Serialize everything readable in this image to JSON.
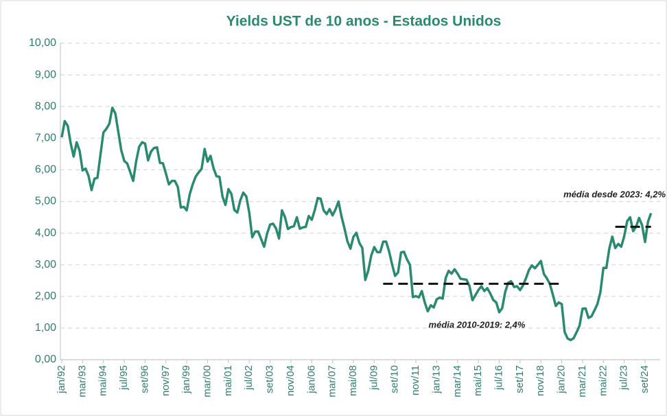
{
  "chart_data": {
    "type": "line",
    "title": "Yields UST de 10 anos - Estados Unidos",
    "categories": [
      "jan/92",
      null,
      null,
      null,
      null,
      null,
      null,
      "mar/93",
      null,
      null,
      null,
      null,
      null,
      null,
      "mai/94",
      null,
      null,
      null,
      null,
      null,
      null,
      "jul/95",
      null,
      null,
      null,
      null,
      null,
      null,
      "set/96",
      null,
      null,
      null,
      null,
      null,
      null,
      "nov/97",
      null,
      null,
      null,
      null,
      null,
      null,
      "jan/99",
      null,
      null,
      null,
      null,
      null,
      null,
      "mar/00",
      null,
      null,
      null,
      null,
      null,
      null,
      "mai/01",
      null,
      null,
      null,
      null,
      null,
      null,
      "jul/02",
      null,
      null,
      null,
      null,
      null,
      null,
      "set/03",
      null,
      null,
      null,
      null,
      null,
      null,
      "nov/04",
      null,
      null,
      null,
      null,
      null,
      null,
      "jan/06",
      null,
      null,
      null,
      null,
      null,
      null,
      "mar/07",
      null,
      null,
      null,
      null,
      null,
      null,
      "mai/08",
      null,
      null,
      null,
      null,
      null,
      null,
      "jul/09",
      null,
      null,
      null,
      null,
      null,
      null,
      "set/10",
      null,
      null,
      null,
      null,
      null,
      null,
      "nov/11",
      null,
      null,
      null,
      null,
      null,
      null,
      "jan/13",
      null,
      null,
      null,
      null,
      null,
      null,
      "mar/14",
      null,
      null,
      null,
      null,
      null,
      null,
      "mai/15",
      null,
      null,
      null,
      null,
      null,
      null,
      "jul/16",
      null,
      null,
      null,
      null,
      null,
      null,
      "set/17",
      null,
      null,
      null,
      null,
      null,
      null,
      "nov/18",
      null,
      null,
      null,
      null,
      null,
      null,
      "jan/20",
      null,
      null,
      null,
      null,
      null,
      null,
      "mar/21",
      null,
      null,
      null,
      null,
      null,
      null,
      "mai/22",
      null,
      null,
      null,
      null,
      null,
      null,
      "jul/23",
      null,
      null,
      null,
      null,
      null,
      null,
      "set/24",
      null,
      null
    ],
    "values": [
      7.03,
      7.54,
      7.39,
      6.84,
      6.42,
      6.87,
      6.6,
      5.98,
      6.04,
      5.81,
      5.36,
      5.72,
      5.75,
      6.48,
      7.18,
      7.3,
      7.46,
      7.96,
      7.78,
      7.2,
      6.62,
      6.28,
      6.2,
      5.93,
      5.65,
      6.27,
      6.73,
      6.87,
      6.83,
      6.3,
      6.58,
      6.69,
      6.71,
      6.22,
      6.21,
      5.88,
      5.54,
      5.65,
      5.65,
      5.46,
      4.81,
      4.83,
      4.72,
      5.23,
      5.54,
      5.79,
      5.92,
      6.03,
      6.66,
      6.26,
      6.44,
      6.05,
      5.8,
      5.78,
      5.16,
      4.89,
      5.39,
      5.24,
      4.73,
      4.65,
      5.04,
      5.28,
      5.16,
      4.65,
      3.87,
      4.05,
      4.05,
      3.81,
      3.57,
      3.98,
      4.27,
      4.3,
      4.15,
      3.83,
      4.72,
      4.5,
      4.13,
      4.19,
      4.22,
      4.5,
      4.14,
      4.18,
      4.2,
      4.54,
      4.42,
      4.72,
      5.11,
      5.09,
      4.72,
      4.6,
      4.76,
      4.56,
      4.75,
      5.0,
      4.52,
      4.15,
      3.74,
      3.51,
      3.88,
      4.01,
      3.69,
      3.53,
      2.52,
      2.82,
      3.29,
      3.56,
      3.4,
      3.4,
      3.73,
      3.73,
      3.42,
      3.01,
      2.65,
      2.76,
      3.39,
      3.41,
      3.17,
      3.0,
      1.98,
      2.01,
      1.97,
      2.17,
      1.8,
      1.53,
      1.72,
      1.65,
      1.91,
      1.96,
      1.93,
      2.58,
      2.81,
      2.72,
      2.86,
      2.72,
      2.56,
      2.54,
      2.53,
      2.33,
      1.88,
      2.04,
      2.2,
      2.32,
      2.17,
      2.26,
      2.09,
      1.89,
      1.81,
      1.5,
      1.63,
      2.14,
      2.43,
      2.48,
      2.3,
      2.32,
      2.2,
      2.35,
      2.58,
      2.84,
      2.98,
      2.89,
      3.0,
      3.12,
      2.71,
      2.57,
      2.4,
      2.06,
      1.7,
      1.81,
      1.76,
      0.87,
      0.67,
      0.62,
      0.68,
      0.87,
      1.08,
      1.61,
      1.62,
      1.32,
      1.37,
      1.56,
      1.76,
      2.13,
      2.9,
      2.9,
      3.52,
      3.89,
      3.53,
      3.66,
      3.57,
      3.9,
      4.38,
      4.5,
      4.06,
      4.21,
      4.48,
      4.25,
      3.72,
      4.36,
      4.63
    ],
    "color": "#2a8a6e",
    "ylim": [
      0,
      10
    ],
    "yticks": [
      {
        "value": 0,
        "label": "0,00"
      },
      {
        "value": 1,
        "label": "1,00"
      },
      {
        "value": 2,
        "label": "2,00"
      },
      {
        "value": 3,
        "label": "3,00"
      },
      {
        "value": 4,
        "label": "4,00"
      },
      {
        "value": 5,
        "label": "5,00"
      },
      {
        "value": 6,
        "label": "6,00"
      },
      {
        "value": 7,
        "label": "7,00"
      },
      {
        "value": 8,
        "label": "8,00"
      },
      {
        "value": 9,
        "label": "9,00"
      },
      {
        "value": 10,
        "label": "10,00"
      }
    ],
    "grid": true,
    "annotations": [
      {
        "text": "média 2010-2019: 2,4%",
        "value": 2.4
      },
      {
        "text": "média desde 2023: 4,2%",
        "value": 4.2
      }
    ]
  }
}
